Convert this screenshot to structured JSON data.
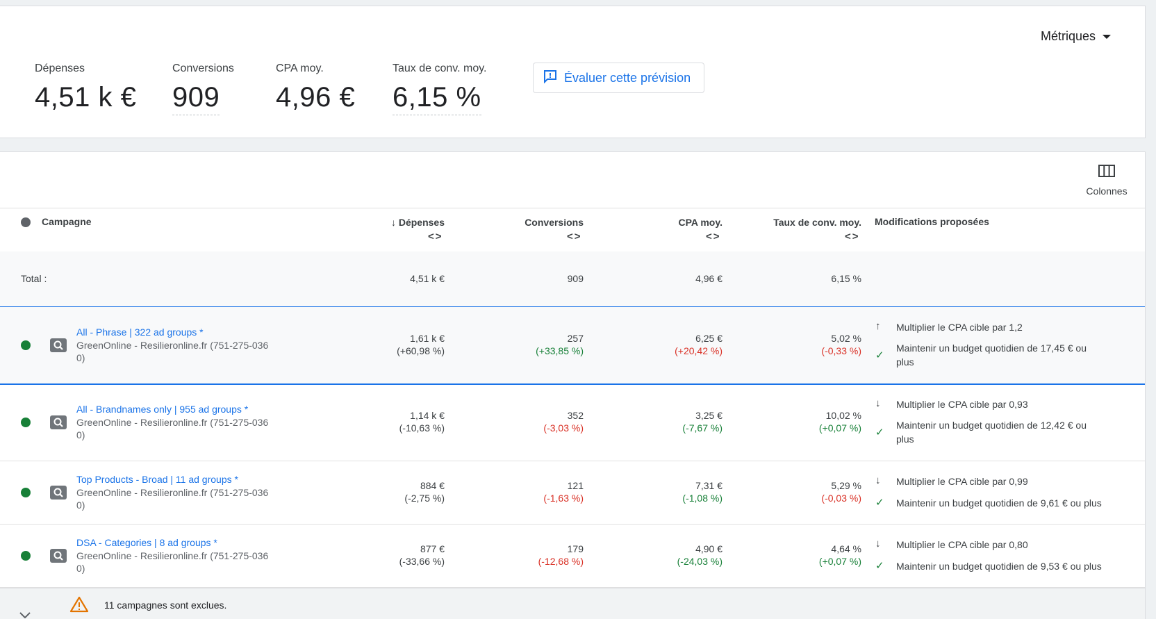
{
  "summary": {
    "metrics": [
      {
        "label": "Dépenses",
        "value": "4,51 k €"
      },
      {
        "label": "Conversions",
        "value": "909"
      },
      {
        "label": "CPA moy.",
        "value": "4,96 €"
      },
      {
        "label": "Taux de conv. moy.",
        "value": "6,15 %"
      }
    ],
    "evaluate_button": "Évaluer cette prévision",
    "metrics_menu": "Métriques"
  },
  "table": {
    "columns_button": "Colonnes",
    "headers": {
      "campaign": "Campagne",
      "spend": "Dépenses",
      "conversions": "Conversions",
      "cpa": "CPA moy.",
      "conv_rate": "Taux de conv. moy.",
      "changes": "Modifications proposées"
    },
    "total": {
      "label": "Total :",
      "spend": "4,51 k €",
      "conversions": "909",
      "cpa": "4,96 €",
      "conv_rate": "6,15 %"
    },
    "rows": [
      {
        "name": "All - Phrase | 322 ad groups *",
        "account_line1": "GreenOnline - Resilieronline.fr (751-275-036",
        "account_line2": "0)",
        "spend": "1,61 k €",
        "spend_delta": "(+60,98 %)",
        "conversions": "257",
        "conversions_delta": "(+33,85 %)",
        "cpa": "6,25 €",
        "cpa_delta": "(+20,42 %)",
        "conv_rate": "5,02 %",
        "conv_rate_delta": "(-0,33 %)",
        "change1": "Multiplier le CPA cible par 1,2",
        "change2_line1": "Maintenir un budget quotidien de 17,45 € ou",
        "change2_line2": "plus"
      },
      {
        "name": "All - Brandnames only | 955 ad groups *",
        "account_line1": "GreenOnline - Resilieronline.fr (751-275-036",
        "account_line2": "0)",
        "spend": "1,14 k €",
        "spend_delta": "(-10,63 %)",
        "conversions": "352",
        "conversions_delta": "(-3,03 %)",
        "cpa": "3,25 €",
        "cpa_delta": "(-7,67 %)",
        "conv_rate": "10,02 %",
        "conv_rate_delta": "(+0,07 %)",
        "change1": "Multiplier le CPA cible par 0,93",
        "change2_line1": "Maintenir un budget quotidien de 12,42 € ou",
        "change2_line2": "plus"
      },
      {
        "name": "Top Products - Broad | 11 ad groups *",
        "account_line1": "GreenOnline - Resilieronline.fr (751-275-036",
        "account_line2": "0)",
        "spend": "884 €",
        "spend_delta": "(-2,75 %)",
        "conversions": "121",
        "conversions_delta": "(-1,63 %)",
        "cpa": "7,31 €",
        "cpa_delta": "(-1,08 %)",
        "conv_rate": "5,29 %",
        "conv_rate_delta": "(-0,03 %)",
        "change1": "Multiplier le CPA cible par 0,99",
        "change2_line1": "Maintenir un budget quotidien de 9,61 € ou plus",
        "change2_line2": ""
      },
      {
        "name": "DSA - Categories | 8 ad groups *",
        "account_line1": "GreenOnline - Resilieronline.fr (751-275-036",
        "account_line2": "0)",
        "spend": "877 €",
        "spend_delta": "(-33,66 %)",
        "conversions": "179",
        "conversions_delta": "(-12,68 %)",
        "cpa": "4,90 €",
        "cpa_delta": "(-24,03 %)",
        "conv_rate": "4,64 %",
        "conv_rate_delta": "(+0,07 %)",
        "change1": "Multiplier le CPA cible par 0,80",
        "change2_line1": "Maintenir un budget quotidien de 9,53 € ou plus",
        "change2_line2": ""
      }
    ],
    "excluded_notice": "11 campagnes sont exclues."
  }
}
